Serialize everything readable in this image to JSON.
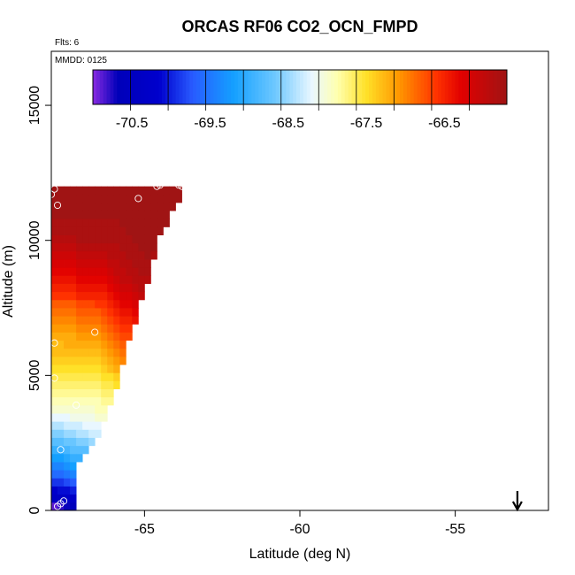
{
  "chart_data": {
    "type": "heatmap",
    "title": "ORCAS RF06 CO2_OCN_FMPD",
    "xlabel": "Latitude (deg N)",
    "ylabel": "Altitude (m)",
    "xlim": [
      -68,
      -52
    ],
    "ylim": [
      0,
      17000
    ],
    "x_ticks": [
      -65,
      -60,
      -55
    ],
    "y_ticks": [
      0,
      5000,
      10000,
      15000
    ],
    "annotations": {
      "flights": "Flts: 6",
      "date": "MMDD: 0125"
    },
    "marker_latitude": -53,
    "colorbar": {
      "ticks": [
        -70.5,
        -69.5,
        -68.5,
        -67.5,
        -66.5
      ],
      "min": -71.0,
      "max": -65.7
    },
    "grid": {
      "x_min": -68.0,
      "x_step": 0.2,
      "y_step": 300,
      "columns": [
        {
          "x": -68.0,
          "values": [
            -70.9,
            -70.4,
            -70.2,
            -69.9,
            -69.6,
            -69.4,
            -69.2,
            -69.0,
            -68.8,
            -68.6,
            -68.4,
            -68.2,
            -68.0,
            -67.9,
            -67.8,
            -67.7,
            -67.6,
            -67.5,
            -67.4,
            -67.3,
            -67.3,
            -67.2,
            -67.1,
            -67.0,
            -66.9,
            -66.8,
            -66.6,
            -66.5,
            -66.4,
            -66.3,
            -66.2,
            -66.1,
            -66.0,
            -65.9,
            -65.8,
            -65.8,
            -65.7,
            -65.7,
            -65.7,
            -65.7
          ]
        },
        {
          "x": -67.8,
          "values": [
            -70.8,
            -70.4,
            -70.1,
            -69.9,
            -69.6,
            -69.4,
            -69.2,
            -69.0,
            -68.8,
            -68.6,
            -68.4,
            -68.2,
            -68.0,
            -67.9,
            -67.8,
            -67.7,
            -67.6,
            -67.5,
            -67.4,
            -67.3,
            -67.3,
            -67.2,
            -67.1,
            -67.0,
            -66.9,
            -66.8,
            -66.6,
            -66.5,
            -66.4,
            -66.3,
            -66.2,
            -66.1,
            -66.0,
            -65.9,
            -65.8,
            -65.8,
            -65.7,
            -65.7,
            -65.7,
            -65.7
          ]
        },
        {
          "x": -67.6,
          "values": [
            -70.7,
            -70.3,
            -70.1,
            -69.8,
            -69.5,
            -69.3,
            -69.1,
            -68.9,
            -68.7,
            -68.5,
            -68.3,
            -68.2,
            -68.0,
            -67.9,
            -67.8,
            -67.7,
            -67.6,
            -67.5,
            -67.4,
            -67.3,
            -67.2,
            -67.2,
            -67.1,
            -67.0,
            -66.9,
            -66.8,
            -66.6,
            -66.5,
            -66.4,
            -66.3,
            -66.2,
            -66.1,
            -66.0,
            -65.9,
            -65.8,
            -65.8,
            -65.7,
            -65.7,
            -65.7,
            -65.7
          ]
        },
        {
          "x": -67.4,
          "values": [
            -70.6,
            -70.3,
            -70.0,
            -69.7,
            -69.4,
            -69.2,
            -69.0,
            -68.8,
            -68.7,
            -68.5,
            -68.3,
            -68.1,
            -68.0,
            -67.9,
            -67.8,
            -67.7,
            -67.6,
            -67.5,
            -67.4,
            -67.3,
            -67.2,
            -67.2,
            -67.1,
            -67.0,
            -66.9,
            -66.8,
            -66.6,
            -66.5,
            -66.4,
            -66.3,
            -66.2,
            -66.1,
            -66.0,
            -65.9,
            -65.8,
            -65.8,
            -65.7,
            -65.7,
            -65.7,
            -65.7
          ]
        },
        {
          "x": -67.2,
          "values": [
            null,
            null,
            null,
            null,
            null,
            null,
            -69.0,
            -68.8,
            -68.6,
            -68.4,
            -68.3,
            -68.1,
            -68.0,
            -67.9,
            -67.8,
            -67.7,
            -67.6,
            -67.5,
            -67.4,
            -67.3,
            -67.2,
            -67.1,
            -67.0,
            -66.9,
            -66.8,
            -66.7,
            -66.5,
            -66.4,
            -66.3,
            -66.2,
            -66.1,
            -66.0,
            -65.9,
            -65.8,
            -65.8,
            -65.8,
            -65.7,
            -65.7,
            -65.7,
            -65.7
          ]
        },
        {
          "x": -67.0,
          "values": [
            null,
            null,
            null,
            null,
            null,
            null,
            null,
            -68.8,
            -68.6,
            -68.4,
            -68.2,
            -68.1,
            -68.0,
            -67.9,
            -67.8,
            -67.7,
            -67.6,
            -67.5,
            -67.4,
            -67.3,
            -67.2,
            -67.1,
            -67.0,
            -66.9,
            -66.8,
            -66.7,
            -66.5,
            -66.4,
            -66.3,
            -66.2,
            -66.1,
            -66.0,
            -65.9,
            -65.8,
            -65.8,
            -65.8,
            -65.7,
            -65.7,
            -65.7,
            -65.7
          ]
        },
        {
          "x": -66.8,
          "values": [
            null,
            null,
            null,
            null,
            null,
            null,
            null,
            null,
            -68.5,
            -68.3,
            -68.2,
            -68.1,
            -68.0,
            -67.9,
            -67.8,
            -67.7,
            -67.6,
            -67.5,
            -67.4,
            -67.3,
            -67.2,
            -67.1,
            -67.0,
            -66.9,
            -66.8,
            -66.7,
            -66.5,
            -66.4,
            -66.3,
            -66.2,
            -66.1,
            -66.0,
            -65.9,
            -65.8,
            -65.8,
            -65.8,
            -65.7,
            -65.7,
            -65.7,
            -65.7
          ]
        },
        {
          "x": -66.6,
          "values": [
            null,
            null,
            null,
            null,
            null,
            null,
            null,
            null,
            null,
            -68.3,
            -68.2,
            -68.0,
            -67.9,
            -67.9,
            -67.8,
            -67.7,
            -67.6,
            -67.5,
            -67.4,
            -67.3,
            -67.2,
            -67.1,
            -67.0,
            -66.9,
            -66.8,
            -66.6,
            -66.5,
            -66.4,
            -66.3,
            -66.2,
            -66.1,
            -66.0,
            -65.9,
            -65.8,
            -65.8,
            -65.8,
            -65.7,
            -65.7,
            -65.7,
            -65.7
          ]
        },
        {
          "x": -66.4,
          "values": [
            null,
            null,
            null,
            null,
            null,
            null,
            null,
            null,
            null,
            null,
            null,
            -68.0,
            -67.9,
            -67.8,
            -67.7,
            -67.6,
            -67.5,
            -67.4,
            -67.3,
            -67.2,
            -67.1,
            -67.0,
            -66.9,
            -66.8,
            -66.7,
            -66.6,
            -66.5,
            -66.4,
            -66.3,
            -66.2,
            -66.1,
            -66.0,
            -65.9,
            -65.8,
            -65.8,
            -65.8,
            -65.7,
            -65.7,
            -65.7,
            -65.7
          ]
        },
        {
          "x": -66.2,
          "values": [
            null,
            null,
            null,
            null,
            null,
            null,
            null,
            null,
            null,
            null,
            null,
            null,
            null,
            -67.8,
            -67.7,
            -67.6,
            -67.5,
            -67.3,
            -67.2,
            -67.1,
            -67.0,
            -66.9,
            -66.8,
            -66.7,
            -66.6,
            -66.5,
            -66.4,
            -66.3,
            -66.2,
            -66.1,
            -66.0,
            -65.9,
            -65.9,
            -65.8,
            -65.8,
            -65.8,
            -65.7,
            -65.7,
            -65.7,
            -65.7
          ]
        },
        {
          "x": -66.0,
          "values": [
            null,
            null,
            null,
            null,
            null,
            null,
            null,
            null,
            null,
            null,
            null,
            null,
            null,
            null,
            null,
            -67.5,
            -67.4,
            -67.2,
            -67.1,
            -67.0,
            -66.9,
            -66.8,
            -66.7,
            -66.6,
            -66.5,
            -66.4,
            -66.3,
            -66.2,
            -66.1,
            -66.0,
            -66.0,
            -65.9,
            -65.9,
            -65.8,
            -65.8,
            -65.8,
            -65.7,
            -65.7,
            -65.7,
            -65.7
          ]
        },
        {
          "x": -65.8,
          "values": [
            null,
            null,
            null,
            null,
            null,
            null,
            null,
            null,
            null,
            null,
            null,
            null,
            null,
            null,
            null,
            null,
            null,
            null,
            -67.0,
            -66.9,
            -66.8,
            -66.7,
            -66.6,
            -66.5,
            -66.4,
            -66.3,
            -66.2,
            -66.1,
            -66.0,
            -66.0,
            -65.9,
            -65.9,
            -65.8,
            -65.8,
            -65.8,
            -65.7,
            -65.7,
            -65.7,
            -65.7,
            -65.7
          ]
        },
        {
          "x": -65.6,
          "values": [
            null,
            null,
            null,
            null,
            null,
            null,
            null,
            null,
            null,
            null,
            null,
            null,
            null,
            null,
            null,
            null,
            null,
            null,
            null,
            null,
            null,
            -66.7,
            -66.6,
            -66.5,
            -66.4,
            -66.3,
            -66.2,
            -66.1,
            -66.0,
            -65.9,
            -65.9,
            -65.8,
            -65.8,
            -65.8,
            -65.7,
            -65.7,
            -65.7,
            -65.7,
            -65.7,
            -65.7
          ]
        },
        {
          "x": -65.4,
          "values": [
            null,
            null,
            null,
            null,
            null,
            null,
            null,
            null,
            null,
            null,
            null,
            null,
            null,
            null,
            null,
            null,
            null,
            null,
            null,
            null,
            null,
            null,
            null,
            -66.4,
            -66.3,
            -66.2,
            -66.1,
            -66.0,
            -65.9,
            -65.9,
            -65.8,
            -65.8,
            -65.8,
            -65.7,
            -65.7,
            -65.7,
            -65.7,
            -65.7,
            -65.7,
            -65.7
          ]
        },
        {
          "x": -65.2,
          "values": [
            null,
            null,
            null,
            null,
            null,
            null,
            null,
            null,
            null,
            null,
            null,
            null,
            null,
            null,
            null,
            null,
            null,
            null,
            null,
            null,
            null,
            null,
            null,
            null,
            null,
            null,
            -66.0,
            -65.9,
            -65.9,
            -65.8,
            -65.8,
            -65.8,
            -65.7,
            -65.7,
            -65.7,
            -65.7,
            -65.7,
            -65.7,
            -65.7,
            -65.7
          ]
        },
        {
          "x": -65.0,
          "values": [
            null,
            null,
            null,
            null,
            null,
            null,
            null,
            null,
            null,
            null,
            null,
            null,
            null,
            null,
            null,
            null,
            null,
            null,
            null,
            null,
            null,
            null,
            null,
            null,
            null,
            null,
            null,
            null,
            -65.9,
            -65.8,
            -65.8,
            -65.7,
            -65.7,
            -65.7,
            -65.7,
            -65.7,
            -65.7,
            -65.7,
            -65.7,
            -65.7
          ]
        },
        {
          "x": -64.8,
          "values": [
            null,
            null,
            null,
            null,
            null,
            null,
            null,
            null,
            null,
            null,
            null,
            null,
            null,
            null,
            null,
            null,
            null,
            null,
            null,
            null,
            null,
            null,
            null,
            null,
            null,
            null,
            null,
            null,
            null,
            null,
            null,
            -65.8,
            -65.7,
            -65.7,
            -65.7,
            -65.7,
            -65.7,
            -65.7,
            -65.7,
            -65.7
          ]
        },
        {
          "x": -64.6,
          "values": [
            null,
            null,
            null,
            null,
            null,
            null,
            null,
            null,
            null,
            null,
            null,
            null,
            null,
            null,
            null,
            null,
            null,
            null,
            null,
            null,
            null,
            null,
            null,
            null,
            null,
            null,
            null,
            null,
            null,
            null,
            null,
            null,
            null,
            null,
            -65.7,
            -65.7,
            -65.7,
            -65.7,
            -65.7,
            -65.7
          ]
        },
        {
          "x": -64.4,
          "values": [
            null,
            null,
            null,
            null,
            null,
            null,
            null,
            null,
            null,
            null,
            null,
            null,
            null,
            null,
            null,
            null,
            null,
            null,
            null,
            null,
            null,
            null,
            null,
            null,
            null,
            null,
            null,
            null,
            null,
            null,
            null,
            null,
            null,
            null,
            null,
            -65.7,
            -65.7,
            -65.7,
            -65.7,
            -65.7
          ]
        },
        {
          "x": -64.2,
          "values": [
            null,
            null,
            null,
            null,
            null,
            null,
            null,
            null,
            null,
            null,
            null,
            null,
            null,
            null,
            null,
            null,
            null,
            null,
            null,
            null,
            null,
            null,
            null,
            null,
            null,
            null,
            null,
            null,
            null,
            null,
            null,
            null,
            null,
            null,
            null,
            null,
            null,
            -65.7,
            -65.7,
            -65.7
          ]
        },
        {
          "x": -64.0,
          "values": [
            null,
            null,
            null,
            null,
            null,
            null,
            null,
            null,
            null,
            null,
            null,
            null,
            null,
            null,
            null,
            null,
            null,
            null,
            null,
            null,
            null,
            null,
            null,
            null,
            null,
            null,
            null,
            null,
            null,
            null,
            null,
            null,
            null,
            null,
            null,
            null,
            null,
            null,
            -65.7,
            -65.7
          ]
        }
      ]
    },
    "observations": [
      {
        "lat": -67.8,
        "alt": 150
      },
      {
        "lat": -67.7,
        "alt": 250
      },
      {
        "lat": -67.6,
        "alt": 350
      },
      {
        "lat": -67.7,
        "alt": 2250
      },
      {
        "lat": -67.2,
        "alt": 3900
      },
      {
        "lat": -67.9,
        "alt": 4900
      },
      {
        "lat": -67.9,
        "alt": 6200
      },
      {
        "lat": -66.6,
        "alt": 6600
      },
      {
        "lat": -67.8,
        "alt": 11300
      },
      {
        "lat": -67.9,
        "alt": 11900
      },
      {
        "lat": -68.0,
        "alt": 11700
      },
      {
        "lat": -65.2,
        "alt": 11550
      },
      {
        "lat": -64.6,
        "alt": 12000
      },
      {
        "lat": -64.5,
        "alt": 12050
      },
      {
        "lat": -63.9,
        "alt": 12050
      },
      {
        "lat": -63.8,
        "alt": 12000
      }
    ]
  }
}
